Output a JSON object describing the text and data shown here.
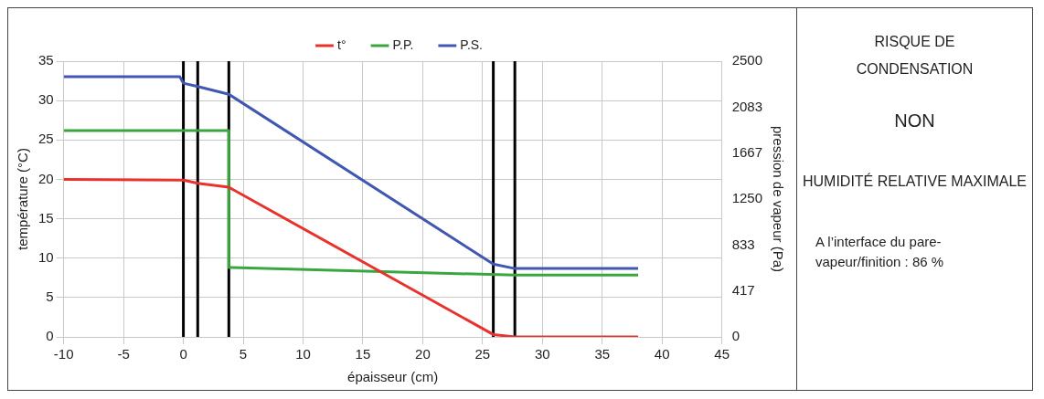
{
  "chart_data": [
    {
      "type": "line",
      "xlabel": "épaisseur (cm)",
      "ylabel": "température (°C)",
      "y2label": "pression de vapeur (Pa)",
      "xlim": [
        -10,
        45
      ],
      "xticks": [
        -10,
        -5,
        0,
        5,
        10,
        15,
        20,
        25,
        30,
        35,
        40,
        45
      ],
      "ylim": [
        0,
        35
      ],
      "yticks": [
        0,
        5,
        10,
        15,
        20,
        25,
        30,
        35
      ],
      "y2lim": [
        0,
        2500
      ],
      "y2ticks": [
        0,
        417,
        833,
        1250,
        1667,
        2083,
        2500
      ],
      "grid": true,
      "legend": "top",
      "marker": "none",
      "line_style": "solid",
      "series": [
        {
          "name": "t°",
          "color": "#e8322d",
          "x": [
            -10,
            0,
            1.2,
            3.8,
            25.9,
            27.7,
            38
          ],
          "values": [
            20,
            19.9,
            19.5,
            19,
            0.3,
            0,
            0
          ]
        },
        {
          "name": "P.P.",
          "color": "#3ba640",
          "axis": "y2",
          "x": [
            -10,
            3.8,
            3.8,
            27.7,
            38
          ],
          "values": [
            1870,
            1870,
            630,
            560,
            560
          ]
        },
        {
          "name": "P.S.",
          "color": "#4257b2",
          "axis": "y2",
          "x": [
            -10,
            -0.3,
            0,
            1.2,
            3.8,
            25.9,
            27.7,
            38
          ],
          "values": [
            2360,
            2360,
            2300,
            2270,
            2200,
            660,
            620,
            620
          ]
        }
      ],
      "ref_lines": [
        {
          "axis": "x",
          "value": 0,
          "color": "#000000"
        },
        {
          "axis": "x",
          "value": 1.2,
          "color": "#000000"
        },
        {
          "axis": "x",
          "value": 3.8,
          "color": "#000000"
        },
        {
          "axis": "x",
          "value": 25.9,
          "color": "#000000"
        },
        {
          "axis": "x",
          "value": 27.7,
          "color": "#000000"
        }
      ]
    },
    {
      "type": "other",
      "title": "RISQUE DE CONDENSATION",
      "annotations": [
        "NON",
        "HUMIDITÉ RELATIVE MAXIMALE",
        "A l’interface du pare-vapeur/finition : 86 %"
      ]
    }
  ]
}
